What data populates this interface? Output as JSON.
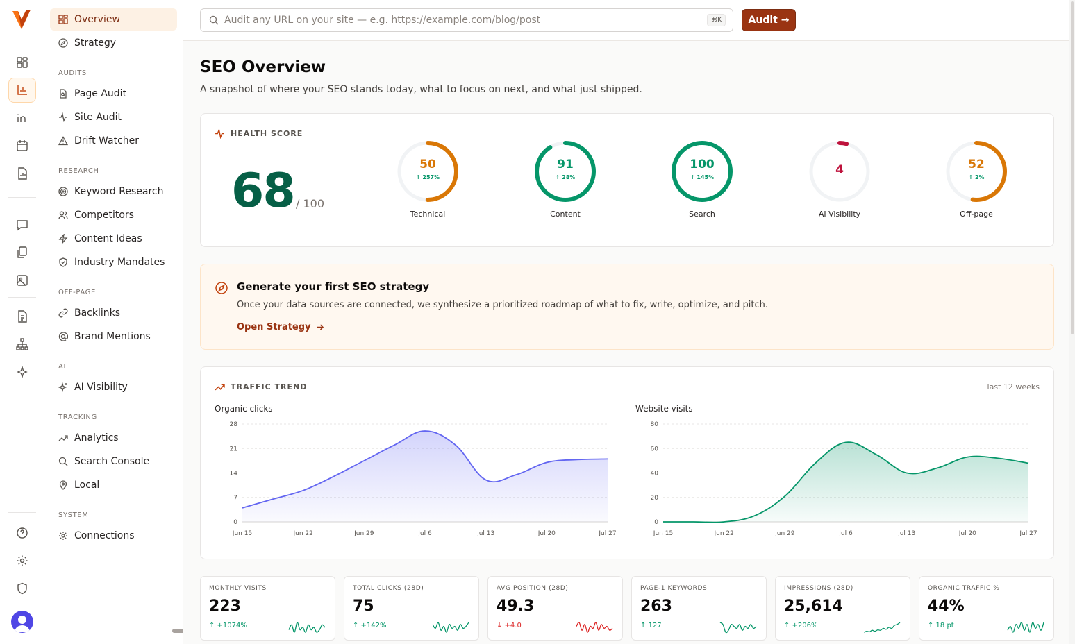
{
  "search": {
    "placeholder": "Audit any URL on your site — e.g. https://example.com/blog/post",
    "shortcut": "⌘K"
  },
  "audit_button": "Audit →",
  "sidebar": {
    "top_items": [
      {
        "label": "Overview",
        "icon": "grid-icon"
      },
      {
        "label": "Strategy",
        "icon": "compass-icon"
      }
    ],
    "sections": [
      {
        "title": "AUDITS",
        "items": [
          {
            "label": "Page Audit"
          },
          {
            "label": "Site Audit"
          },
          {
            "label": "Drift Watcher"
          }
        ]
      },
      {
        "title": "RESEARCH",
        "items": [
          {
            "label": "Keyword Research"
          },
          {
            "label": "Competitors"
          },
          {
            "label": "Content Ideas"
          },
          {
            "label": "Industry Mandates"
          }
        ]
      },
      {
        "title": "OFF-PAGE",
        "items": [
          {
            "label": "Backlinks"
          },
          {
            "label": "Brand Mentions"
          }
        ]
      },
      {
        "title": "AI",
        "items": [
          {
            "label": "AI Visibility"
          }
        ]
      },
      {
        "title": "TRACKING",
        "items": [
          {
            "label": "Analytics"
          },
          {
            "label": "Search Console"
          },
          {
            "label": "Local"
          }
        ]
      },
      {
        "title": "SYSTEM",
        "items": [
          {
            "label": "Connections"
          }
        ]
      }
    ]
  },
  "page": {
    "title": "SEO Overview",
    "subtitle": "A snapshot of where your SEO stands today, what to focus on next, and what just shipped."
  },
  "health": {
    "label": "HEALTH SCORE",
    "score": "68",
    "denominator": "/ 100",
    "scores": [
      {
        "label": "Technical",
        "value": 50,
        "delta": "↑ 257%",
        "color": "#d97706"
      },
      {
        "label": "Content",
        "value": 91,
        "delta": "↑ 28%",
        "color": "#059669"
      },
      {
        "label": "Search",
        "value": 100,
        "delta": "↑ 145%",
        "color": "#059669"
      },
      {
        "label": "AI Visibility",
        "value": 4,
        "delta": "",
        "color": "#be123c"
      },
      {
        "label": "Off-page",
        "value": 52,
        "delta": "↑ 2%",
        "color": "#d97706"
      }
    ]
  },
  "banner": {
    "title": "Generate your first SEO strategy",
    "text": "Once your data sources are connected, we synthesize a prioritized roadmap of what to fix, write, optimize, and pitch.",
    "link": "Open Strategy"
  },
  "traffic": {
    "label": "TRAFFIC TREND",
    "range": "last 12 weeks"
  },
  "chart_data": [
    {
      "type": "area",
      "title": "Organic clicks",
      "x": [
        "Jun 15",
        "Jun 18",
        "Jun 22",
        "Jun 25",
        "Jun 29",
        "Jul 2",
        "Jul 6",
        "Jul 9",
        "Jul 13",
        "Jul 16",
        "Jul 20",
        "Jul 23",
        "Jul 27"
      ],
      "xticks": [
        "Jun 15",
        "Jun 22",
        "Jun 29",
        "Jul 6",
        "Jul 13",
        "Jul 20",
        "Jul 27"
      ],
      "values": [
        4,
        6.5,
        9,
        13,
        17.5,
        22,
        26,
        22,
        12,
        13.5,
        17,
        17.8,
        18
      ],
      "ylim": [
        0,
        28
      ],
      "yticks": [
        0,
        7,
        14,
        21,
        28
      ],
      "color": "#6366f1"
    },
    {
      "type": "area",
      "title": "Website visits",
      "x": [
        "Jun 15",
        "Jun 18",
        "Jun 22",
        "Jun 25",
        "Jun 29",
        "Jul 2",
        "Jul 6",
        "Jul 9",
        "Jul 13",
        "Jul 16",
        "Jul 20",
        "Jul 23",
        "Jul 27"
      ],
      "xticks": [
        "Jun 15",
        "Jun 22",
        "Jun 29",
        "Jul 6",
        "Jul 13",
        "Jul 20",
        "Jul 27"
      ],
      "values": [
        0,
        0,
        0,
        5,
        21,
        48,
        65,
        55,
        40,
        44,
        53,
        52,
        48
      ],
      "ylim": [
        0,
        80
      ],
      "yticks": [
        0,
        20,
        40,
        60,
        80
      ],
      "color": "#059669"
    }
  ],
  "stats": [
    {
      "label": "MONTHLY VISITS",
      "value": "223",
      "delta": "↑ +1074%",
      "trend": "up",
      "color": "#059669",
      "spark": [
        3,
        5,
        2,
        6,
        3,
        4,
        2,
        5,
        3,
        4,
        2,
        3,
        5,
        4
      ]
    },
    {
      "label": "TOTAL CLICKS (28D)",
      "value": "75",
      "delta": "↑ +142%",
      "trend": "up",
      "color": "#059669",
      "spark": [
        5,
        3,
        6,
        2,
        4,
        1,
        5,
        3,
        4,
        2,
        5,
        3,
        4,
        6
      ]
    },
    {
      "label": "AVG POSITION (28D)",
      "value": "49.3",
      "delta": "↓ +4.0",
      "trend": "down",
      "color": "#dc2626",
      "spark": [
        4,
        6,
        2,
        5,
        1,
        4,
        3,
        6,
        2,
        5,
        3,
        4,
        2,
        3
      ]
    },
    {
      "label": "PAGE-1 KEYWORDS",
      "value": "263",
      "delta": "↑ 127",
      "trend": "up",
      "color": "#059669",
      "spark": [
        6,
        5,
        1,
        2,
        5,
        4,
        3,
        5,
        2,
        4,
        3,
        5,
        3,
        4
      ]
    },
    {
      "label": "IMPRESSIONS (28D)",
      "value": "25,614",
      "delta": "↑ +206%",
      "trend": "up",
      "color": "#059669",
      "spark": [
        1,
        1.5,
        1.2,
        2,
        1.5,
        2.2,
        2,
        3,
        2.5,
        3.5,
        3,
        4.5,
        5,
        6
      ]
    },
    {
      "label": "ORGANIC TRAFFIC %",
      "value": "44%",
      "delta": "↑ 18 pt",
      "trend": "up",
      "color": "#059669",
      "spark": [
        2,
        4,
        1,
        5,
        3,
        6,
        2,
        5,
        1,
        6,
        3,
        5,
        2,
        6
      ]
    }
  ]
}
